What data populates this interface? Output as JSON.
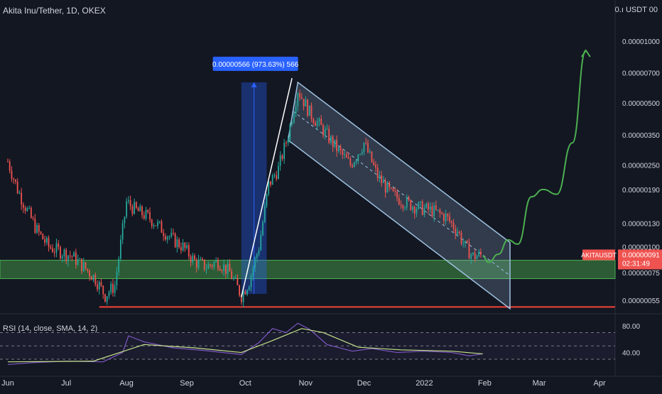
{
  "header": {
    "title": "Akita Inu/Tether, 1D, OKEX"
  },
  "price_axis": {
    "unit_label": "0.ı USDT 00",
    "ticks": [
      "0.00001000",
      "0.00000700",
      "0.00000500",
      "0.00000350",
      "0.00000250",
      "0.00000190",
      "0.00000130",
      "0.00000100",
      "0.00000075",
      "0.00000055"
    ]
  },
  "symbol_tag": {
    "name": "AKITAUSDT",
    "price": "0.00000091",
    "countdown": "02:31:49"
  },
  "measure_label": "0.00000566 (973.63%) 566",
  "rsi_axis": {
    "ticks": [
      "80.00",
      "40.00"
    ]
  },
  "indicator": {
    "label": "RSI (14, close, SMA, 14, 2)"
  },
  "time_axis": {
    "labels": [
      "Jun",
      "Jul",
      "Aug",
      "Sep",
      "Oct",
      "Nov",
      "Dec",
      "2022",
      "Feb",
      "Mar",
      "Apr"
    ]
  },
  "colors": {
    "background": "#131722",
    "up": "#26a69a",
    "down": "#ef5350",
    "grid": "#1e222d",
    "channel": "#9ec1e0",
    "support_zone": "#4caf50",
    "support_line": "#f44336",
    "projection": "#4caf50",
    "rsi_line": "#7e57c2",
    "rsi_sma": "#c6e48b",
    "tag": "#ef5350",
    "measure": "#2962ff"
  },
  "chart_data": {
    "type": "candlestick",
    "title": "Akita Inu/Tether, 1D, OKEX",
    "y_scale": "log",
    "ylim": [
      4.8e-07,
      1.35e-05
    ],
    "x_labels": [
      "Jun",
      "Jul",
      "Aug",
      "Sep",
      "Oct",
      "Nov",
      "Dec",
      "2022",
      "Feb",
      "Mar",
      "Apr"
    ],
    "close_series": [
      {
        "date": "2021-06-01",
        "close": 2.6e-06
      },
      {
        "date": "2021-06-06",
        "close": 1.9e-06
      },
      {
        "date": "2021-06-11",
        "close": 1.5e-06
      },
      {
        "date": "2021-06-16",
        "close": 1.2e-06
      },
      {
        "date": "2021-06-22",
        "close": 1e-06
      },
      {
        "date": "2021-06-28",
        "close": 9.5e-07
      },
      {
        "date": "2021-07-04",
        "close": 9e-07
      },
      {
        "date": "2021-07-10",
        "close": 8e-07
      },
      {
        "date": "2021-07-16",
        "close": 7e-07
      },
      {
        "date": "2021-07-21",
        "close": 5.8e-07
      },
      {
        "date": "2021-07-26",
        "close": 6.5e-07
      },
      {
        "date": "2021-08-01",
        "close": 1.65e-06
      },
      {
        "date": "2021-08-06",
        "close": 1.5e-06
      },
      {
        "date": "2021-08-12",
        "close": 1.4e-06
      },
      {
        "date": "2021-08-18",
        "close": 1.25e-06
      },
      {
        "date": "2021-08-24",
        "close": 1.1e-06
      },
      {
        "date": "2021-08-30",
        "close": 1e-06
      },
      {
        "date": "2021-09-05",
        "close": 8.5e-07
      },
      {
        "date": "2021-09-11",
        "close": 8e-07
      },
      {
        "date": "2021-09-17",
        "close": 8.5e-07
      },
      {
        "date": "2021-09-23",
        "close": 7.5e-07
      },
      {
        "date": "2021-09-29",
        "close": 5.8e-07
      },
      {
        "date": "2021-10-03",
        "close": 6.8e-07
      },
      {
        "date": "2021-10-08",
        "close": 1e-06
      },
      {
        "date": "2021-10-13",
        "close": 2e-06
      },
      {
        "date": "2021-10-18",
        "close": 2.4e-06
      },
      {
        "date": "2021-10-23",
        "close": 3.5e-06
      },
      {
        "date": "2021-10-28",
        "close": 5.8e-06
      },
      {
        "date": "2021-11-03",
        "close": 4.5e-06
      },
      {
        "date": "2021-11-10",
        "close": 3.7e-06
      },
      {
        "date": "2021-11-17",
        "close": 3e-06
      },
      {
        "date": "2021-11-24",
        "close": 2.5e-06
      },
      {
        "date": "2021-12-01",
        "close": 3.2e-06
      },
      {
        "date": "2021-12-08",
        "close": 2.2e-06
      },
      {
        "date": "2021-12-15",
        "close": 1.8e-06
      },
      {
        "date": "2021-12-22",
        "close": 1.65e-06
      },
      {
        "date": "2021-12-29",
        "close": 1.55e-06
      },
      {
        "date": "2022-01-05",
        "close": 1.5e-06
      },
      {
        "date": "2022-01-12",
        "close": 1.4e-06
      },
      {
        "date": "2022-01-18",
        "close": 1.2e-06
      },
      {
        "date": "2022-01-22",
        "close": 1e-06
      },
      {
        "date": "2022-01-26",
        "close": 9e-07
      },
      {
        "date": "2022-01-31",
        "close": 9.1e-07
      }
    ],
    "rsi_series": [
      {
        "date": "2021-06-01",
        "value": 22
      },
      {
        "date": "2021-06-15",
        "value": 25
      },
      {
        "date": "2021-07-01",
        "value": 27
      },
      {
        "date": "2021-07-20",
        "value": 26
      },
      {
        "date": "2021-07-30",
        "value": 40
      },
      {
        "date": "2021-08-02",
        "value": 65
      },
      {
        "date": "2021-08-10",
        "value": 56
      },
      {
        "date": "2021-08-25",
        "value": 47
      },
      {
        "date": "2021-09-10",
        "value": 43
      },
      {
        "date": "2021-09-29",
        "value": 37
      },
      {
        "date": "2021-10-08",
        "value": 55
      },
      {
        "date": "2021-10-15",
        "value": 76
      },
      {
        "date": "2021-10-22",
        "value": 70
      },
      {
        "date": "2021-10-28",
        "value": 84
      },
      {
        "date": "2021-11-03",
        "value": 75
      },
      {
        "date": "2021-11-12",
        "value": 52
      },
      {
        "date": "2021-11-25",
        "value": 42
      },
      {
        "date": "2021-12-05",
        "value": 46
      },
      {
        "date": "2021-12-18",
        "value": 40
      },
      {
        "date": "2022-01-01",
        "value": 42
      },
      {
        "date": "2022-01-15",
        "value": 40
      },
      {
        "date": "2022-01-24",
        "value": 35
      },
      {
        "date": "2022-01-31",
        "value": 38
      }
    ],
    "rsi_sma_series": [
      {
        "date": "2021-06-01",
        "value": 26
      },
      {
        "date": "2021-07-15",
        "value": 27
      },
      {
        "date": "2021-08-10",
        "value": 52
      },
      {
        "date": "2021-09-05",
        "value": 47
      },
      {
        "date": "2021-09-29",
        "value": 40
      },
      {
        "date": "2021-10-15",
        "value": 58
      },
      {
        "date": "2021-10-30",
        "value": 76
      },
      {
        "date": "2021-11-10",
        "value": 70
      },
      {
        "date": "2021-11-28",
        "value": 48
      },
      {
        "date": "2021-12-20",
        "value": 44
      },
      {
        "date": "2022-01-15",
        "value": 42
      },
      {
        "date": "2022-01-31",
        "value": 38
      }
    ],
    "rsi_levels": [
      70,
      50,
      30
    ],
    "rsi_ylim": [
      15,
      95
    ],
    "annotations": {
      "support_zone": [
        7e-07,
        8.6e-07
      ],
      "support_line": 5.1e-07,
      "channel_upper": [
        {
          "date": "2021-10-28",
          "price": 6.3e-06
        },
        {
          "date": "2022-02-14",
          "price": 1.05e-06
        }
      ],
      "channel_lower": [
        {
          "date": "2021-10-23",
          "price": 3.3e-06
        },
        {
          "date": "2022-02-14",
          "price": 5e-07
        }
      ],
      "rally_line": [
        {
          "date": "2021-09-29",
          "price": 5.7e-07
        },
        {
          "date": "2021-10-25",
          "price": 6.6e-06
        }
      ],
      "measure_box": {
        "from": "2021-09-29",
        "to": "2021-10-12",
        "low": 5.9e-07,
        "high": 6.3e-06
      },
      "projection": [
        {
          "date": "2022-01-31",
          "price": 9e-07
        },
        {
          "date": "2022-02-03",
          "price": 8.4e-07
        },
        {
          "date": "2022-02-08",
          "price": 9.2e-07
        },
        {
          "date": "2022-02-13",
          "price": 1.08e-06
        },
        {
          "date": "2022-02-18",
          "price": 1.03e-06
        },
        {
          "date": "2022-02-25",
          "price": 1.75e-06
        },
        {
          "date": "2022-03-03",
          "price": 1.9e-06
        },
        {
          "date": "2022-03-10",
          "price": 1.8e-06
        },
        {
          "date": "2022-03-18",
          "price": 3.2e-06
        },
        {
          "date": "2022-03-25",
          "price": 9e-06
        }
      ]
    }
  }
}
